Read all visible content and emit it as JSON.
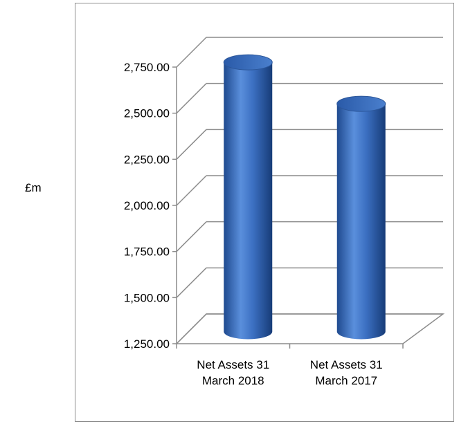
{
  "chart_data": {
    "type": "bar",
    "style": "3d-cylinder",
    "categories": [
      [
        "Net Assets 31",
        "March 2018"
      ],
      [
        "Net Assets 31",
        "March 2017"
      ]
    ],
    "values": [
      2710,
      2485
    ],
    "ylabel": "£m",
    "ylim": [
      1250,
      2750
    ],
    "yticks": [
      1250,
      1500,
      1750,
      2000,
      2250,
      2500,
      2750
    ],
    "ytick_labels": [
      "1,250.00",
      "1,500.00",
      "1,750.00",
      "2,000.00",
      "2,250.00",
      "2,500.00",
      "2,750.00"
    ],
    "grid": true,
    "legend": "none",
    "bar_color": "#3b6fbf"
  }
}
